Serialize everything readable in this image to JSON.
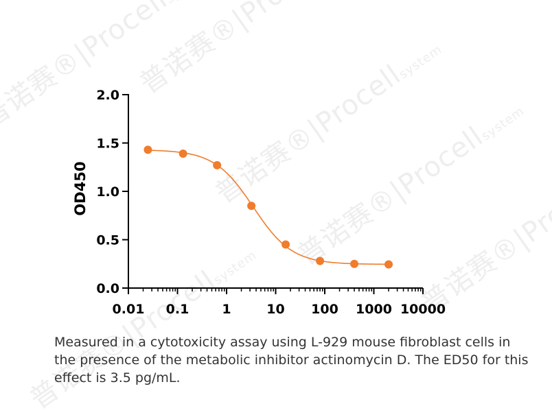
{
  "watermark": {
    "text": "普诺赛®|Procell",
    "sub": "system"
  },
  "chart_data": {
    "type": "scatter",
    "x_scale": "log",
    "xlim": [
      0.01,
      10000
    ],
    "ylim": [
      0,
      2.0
    ],
    "x_ticks": [
      0.01,
      0.1,
      1,
      10,
      100,
      1000,
      10000
    ],
    "x_tick_labels": [
      "0.01",
      "0.1",
      "1",
      "10",
      "100",
      "1000",
      "10000"
    ],
    "y_ticks": [
      0,
      0.5,
      1.0,
      1.5,
      2.0
    ],
    "y_tick_labels": [
      "0.0",
      "0.5",
      "1.0",
      "1.5",
      "2.0"
    ],
    "xlabel": "",
    "ylabel": "OD450",
    "grid": false,
    "marker_color": "#f07c2c",
    "curve_color": "#f07c2c",
    "series": [
      {
        "x": [
          0.025,
          0.13,
          0.64,
          3.2,
          16,
          80,
          400,
          2000
        ],
        "y": [
          1.43,
          1.39,
          1.27,
          0.85,
          0.45,
          0.28,
          0.25,
          0.245
        ]
      }
    ],
    "fit": {
      "model": "4PL",
      "top": 1.43,
      "bottom": 0.245,
      "ec50": 3.5,
      "hill": 1.1
    }
  },
  "caption": "Measured in a cytotoxicity assay using L-929 mouse fibroblast cells in the presence of the metabolic inhibitor actinomycin D. The ED50 for this effect is 3.5 pg/mL."
}
